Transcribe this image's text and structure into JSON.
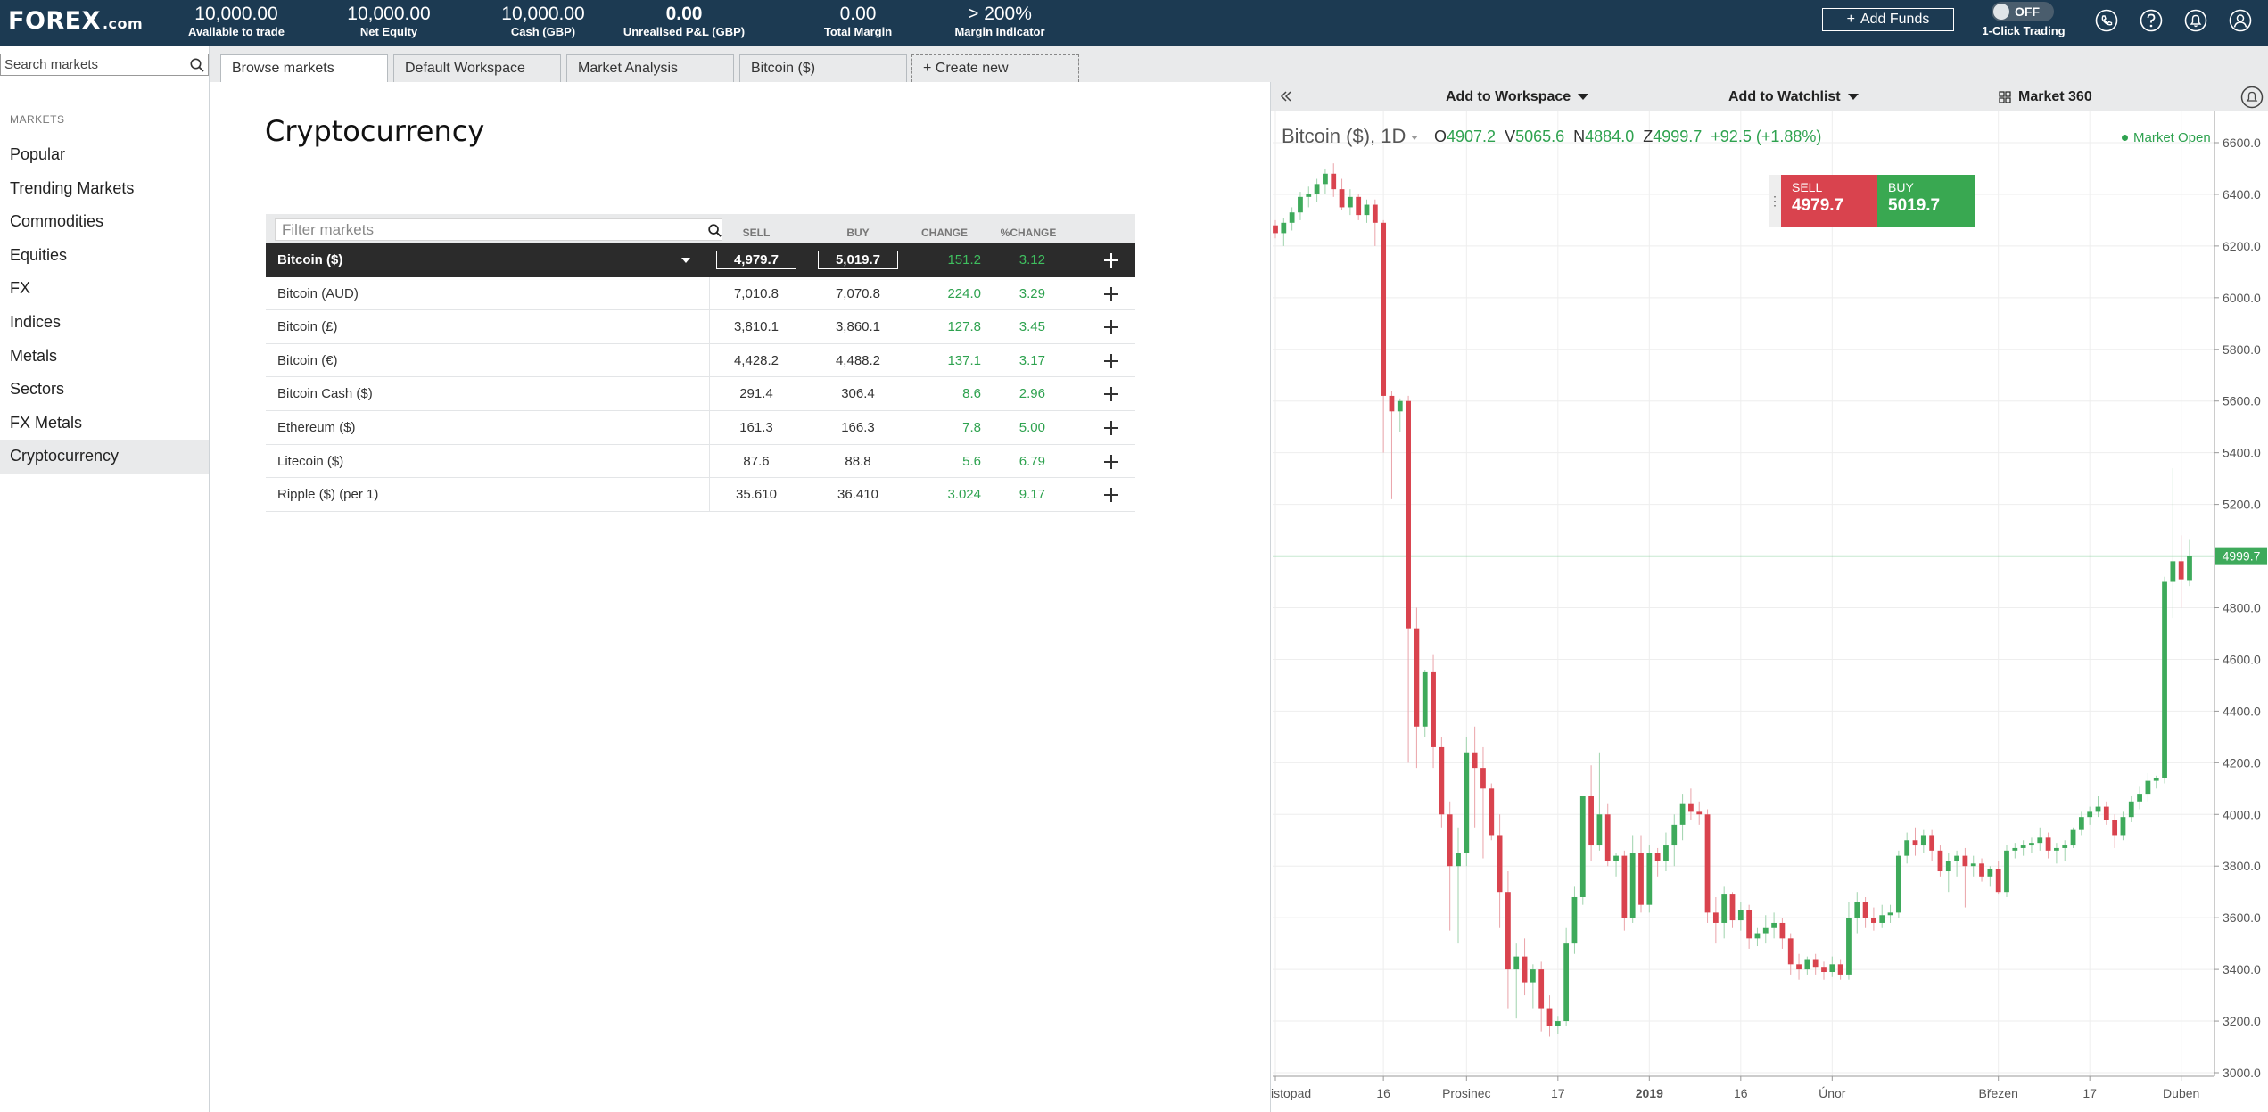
{
  "topbar": {
    "logo_main": "FOREX",
    "logo_suffix": ".com",
    "stats": [
      {
        "value": "10,000.00",
        "label": "Available to trade"
      },
      {
        "value": "10,000.00",
        "label": "Net Equity"
      },
      {
        "value": "10,000.00",
        "label": "Cash (GBP)"
      },
      {
        "value": "0.00",
        "label": "Unrealised P&L (GBP)"
      },
      {
        "value": "0.00",
        "label": "Total Margin"
      },
      {
        "value": "> 200%",
        "label": "Margin Indicator"
      }
    ],
    "add_funds": "Add Funds",
    "toggle_state": "OFF",
    "one_click_label": "1-Click Trading",
    "icons": [
      "phone-icon",
      "help-icon",
      "notifications-icon",
      "user-icon"
    ]
  },
  "sidebar": {
    "search_placeholder": "Search markets",
    "heading": "MARKETS",
    "items": [
      {
        "label": "Popular"
      },
      {
        "label": "Trending Markets"
      },
      {
        "label": "Commodities"
      },
      {
        "label": "Equities"
      },
      {
        "label": "FX"
      },
      {
        "label": "Indices"
      },
      {
        "label": "Metals"
      },
      {
        "label": "Sectors"
      },
      {
        "label": "FX Metals"
      },
      {
        "label": "Cryptocurrency",
        "active": true
      }
    ]
  },
  "tabs": [
    {
      "label": "Browse markets",
      "active": true
    },
    {
      "label": "Default Workspace"
    },
    {
      "label": "Market Analysis"
    },
    {
      "label": "Bitcoin ($)"
    },
    {
      "label": "+ Create new"
    }
  ],
  "browse": {
    "title": "Cryptocurrency",
    "filter_placeholder": "Filter markets",
    "headers": {
      "sell": "SELL",
      "buy": "BUY",
      "change": "CHANGE",
      "pct": "%CHANGE"
    },
    "rows": [
      {
        "name": "Bitcoin ($)",
        "sell": "4,979.7",
        "buy": "5,019.7",
        "change": "151.2",
        "pct": "3.12",
        "selected": true
      },
      {
        "name": "Bitcoin (AUD)",
        "sell": "7,010.8",
        "buy": "7,070.8",
        "change": "224.0",
        "pct": "3.29"
      },
      {
        "name": "Bitcoin (£)",
        "sell": "3,810.1",
        "buy": "3,860.1",
        "change": "127.8",
        "pct": "3.45"
      },
      {
        "name": "Bitcoin (€)",
        "sell": "4,428.2",
        "buy": "4,488.2",
        "change": "137.1",
        "pct": "3.17"
      },
      {
        "name": "Bitcoin Cash ($)",
        "sell": "291.4",
        "buy": "306.4",
        "change": "8.6",
        "pct": "2.96"
      },
      {
        "name": "Ethereum ($)",
        "sell": "161.3",
        "buy": "166.3",
        "change": "7.8",
        "pct": "5.00"
      },
      {
        "name": "Litecoin ($)",
        "sell": "87.6",
        "buy": "88.8",
        "change": "5.6",
        "pct": "6.79"
      },
      {
        "name": "Ripple ($) (per 1)",
        "sell": "35.610",
        "buy": "36.410",
        "change": "3.024",
        "pct": "9.17"
      }
    ]
  },
  "chart_panel": {
    "add_workspace": "Add to Workspace",
    "add_watchlist": "Add to Watchlist",
    "market360": "Market 360",
    "symbol": "Bitcoin ($), 1D",
    "ohlc": [
      {
        "k": "O",
        "v": "4907.2"
      },
      {
        "k": "V",
        "v": "5065.6"
      },
      {
        "k": "N",
        "v": "4884.0"
      },
      {
        "k": "Z",
        "v": "4999.7"
      }
    ],
    "change": "+92.5 (+1.88%)",
    "market_status": "Market Open",
    "sell_label": "SELL",
    "sell_price": "4979.7",
    "buy_label": "BUY",
    "buy_price": "5019.7",
    "colors": {
      "up": "#3eaa5b",
      "down": "#d9434e",
      "last_line": "#8fd2a2"
    }
  },
  "chart_data": {
    "type": "candlestick",
    "title": "Bitcoin ($), 1D",
    "ylim": [
      3000,
      6600
    ],
    "y_ticks": [
      3000,
      3200,
      3400,
      3600,
      3800,
      4000,
      4200,
      4400,
      4600,
      4800,
      5000,
      5200,
      5400,
      5600,
      5800,
      6000,
      6200,
      6400,
      6600
    ],
    "y_tick_labels": [
      "3000.0",
      "3200.0",
      "3400.0",
      "3600.0",
      "3800.0",
      "4000.0",
      "4200.0",
      "4400.0",
      "4600.0",
      "4800.0",
      "5000.0",
      "5200.0",
      "5400.0",
      "5600.0",
      "5800.0",
      "6000.0",
      "6200.0",
      "6400.0",
      "6600.0"
    ],
    "x_tick_labels": [
      {
        "label": "istopad",
        "index": 0
      },
      {
        "label": "16",
        "index": 13
      },
      {
        "label": "Prosinec",
        "index": 23
      },
      {
        "label": "17",
        "index": 34
      },
      {
        "label": "2019",
        "index": 45,
        "bold": true
      },
      {
        "label": "16",
        "index": 56
      },
      {
        "label": "Únor",
        "index": 67
      },
      {
        "label": "Březen",
        "index": 87
      },
      {
        "label": "17",
        "index": 98
      },
      {
        "label": "Duben",
        "index": 109
      }
    ],
    "last_price": 4999.7,
    "last_price_label": "4999.7",
    "candles": [
      {
        "o": 6280,
        "h": 6300,
        "l": 6230,
        "c": 6250
      },
      {
        "o": 6250,
        "h": 6310,
        "l": 6200,
        "c": 6290
      },
      {
        "o": 6290,
        "h": 6350,
        "l": 6260,
        "c": 6330
      },
      {
        "o": 6330,
        "h": 6410,
        "l": 6300,
        "c": 6390
      },
      {
        "o": 6390,
        "h": 6430,
        "l": 6350,
        "c": 6400
      },
      {
        "o": 6400,
        "h": 6460,
        "l": 6370,
        "c": 6440
      },
      {
        "o": 6440,
        "h": 6500,
        "l": 6400,
        "c": 6480
      },
      {
        "o": 6480,
        "h": 6520,
        "l": 6390,
        "c": 6420
      },
      {
        "o": 6420,
        "h": 6460,
        "l": 6340,
        "c": 6350
      },
      {
        "o": 6350,
        "h": 6420,
        "l": 6320,
        "c": 6390
      },
      {
        "o": 6390,
        "h": 6400,
        "l": 6300,
        "c": 6320
      },
      {
        "o": 6320,
        "h": 6380,
        "l": 6290,
        "c": 6360
      },
      {
        "o": 6360,
        "h": 6380,
        "l": 6200,
        "c": 6290
      },
      {
        "o": 6290,
        "h": 6300,
        "l": 5400,
        "c": 5620
      },
      {
        "o": 5620,
        "h": 5640,
        "l": 5220,
        "c": 5560
      },
      {
        "o": 5560,
        "h": 5610,
        "l": 5480,
        "c": 5600
      },
      {
        "o": 5600,
        "h": 5620,
        "l": 4200,
        "c": 4720
      },
      {
        "o": 4720,
        "h": 4800,
        "l": 4180,
        "c": 4340
      },
      {
        "o": 4340,
        "h": 4560,
        "l": 4300,
        "c": 4550
      },
      {
        "o": 4550,
        "h": 4620,
        "l": 4180,
        "c": 4260
      },
      {
        "o": 4260,
        "h": 4300,
        "l": 3950,
        "c": 4000
      },
      {
        "o": 4000,
        "h": 4050,
        "l": 3550,
        "c": 3800
      },
      {
        "o": 3800,
        "h": 3950,
        "l": 3500,
        "c": 3850
      },
      {
        "o": 3850,
        "h": 4300,
        "l": 3800,
        "c": 4240
      },
      {
        "o": 4240,
        "h": 4340,
        "l": 3950,
        "c": 4180
      },
      {
        "o": 4180,
        "h": 4260,
        "l": 3830,
        "c": 4100
      },
      {
        "o": 4100,
        "h": 4120,
        "l": 3900,
        "c": 3920
      },
      {
        "o": 3920,
        "h": 4000,
        "l": 3560,
        "c": 3700
      },
      {
        "o": 3700,
        "h": 3780,
        "l": 3250,
        "c": 3400
      },
      {
        "o": 3400,
        "h": 3500,
        "l": 3210,
        "c": 3450
      },
      {
        "o": 3450,
        "h": 3520,
        "l": 3300,
        "c": 3350
      },
      {
        "o": 3350,
        "h": 3420,
        "l": 3250,
        "c": 3400
      },
      {
        "o": 3400,
        "h": 3430,
        "l": 3160,
        "c": 3250
      },
      {
        "o": 3250,
        "h": 3300,
        "l": 3140,
        "c": 3180
      },
      {
        "o": 3180,
        "h": 3220,
        "l": 3150,
        "c": 3200
      },
      {
        "o": 3200,
        "h": 3560,
        "l": 3180,
        "c": 3500
      },
      {
        "o": 3500,
        "h": 3720,
        "l": 3460,
        "c": 3680
      },
      {
        "o": 3680,
        "h": 4050,
        "l": 3650,
        "c": 4070
      },
      {
        "o": 4070,
        "h": 4190,
        "l": 3820,
        "c": 3880
      },
      {
        "o": 3880,
        "h": 4240,
        "l": 3860,
        "c": 4000
      },
      {
        "o": 4000,
        "h": 4040,
        "l": 3800,
        "c": 3820
      },
      {
        "o": 3820,
        "h": 3850,
        "l": 3760,
        "c": 3840
      },
      {
        "o": 3840,
        "h": 3860,
        "l": 3550,
        "c": 3600
      },
      {
        "o": 3600,
        "h": 3920,
        "l": 3580,
        "c": 3850
      },
      {
        "o": 3850,
        "h": 3920,
        "l": 3620,
        "c": 3650
      },
      {
        "o": 3650,
        "h": 3880,
        "l": 3620,
        "c": 3850
      },
      {
        "o": 3850,
        "h": 3870,
        "l": 3760,
        "c": 3820
      },
      {
        "o": 3820,
        "h": 3930,
        "l": 3780,
        "c": 3880
      },
      {
        "o": 3880,
        "h": 4000,
        "l": 3800,
        "c": 3960
      },
      {
        "o": 3960,
        "h": 4080,
        "l": 3900,
        "c": 4040
      },
      {
        "o": 4040,
        "h": 4100,
        "l": 3980,
        "c": 4010
      },
      {
        "o": 4010,
        "h": 4050,
        "l": 3960,
        "c": 4000
      },
      {
        "o": 4000,
        "h": 4020,
        "l": 3580,
        "c": 3620
      },
      {
        "o": 3620,
        "h": 3680,
        "l": 3500,
        "c": 3580
      },
      {
        "o": 3580,
        "h": 3720,
        "l": 3520,
        "c": 3690
      },
      {
        "o": 3690,
        "h": 3700,
        "l": 3560,
        "c": 3590
      },
      {
        "o": 3590,
        "h": 3660,
        "l": 3550,
        "c": 3630
      },
      {
        "o": 3630,
        "h": 3650,
        "l": 3480,
        "c": 3520
      },
      {
        "o": 3520,
        "h": 3560,
        "l": 3490,
        "c": 3540
      },
      {
        "o": 3540,
        "h": 3610,
        "l": 3500,
        "c": 3560
      },
      {
        "o": 3560,
        "h": 3620,
        "l": 3520,
        "c": 3580
      },
      {
        "o": 3580,
        "h": 3600,
        "l": 3480,
        "c": 3520
      },
      {
        "o": 3520,
        "h": 3540,
        "l": 3380,
        "c": 3420
      },
      {
        "o": 3420,
        "h": 3460,
        "l": 3360,
        "c": 3400
      },
      {
        "o": 3400,
        "h": 3450,
        "l": 3380,
        "c": 3440
      },
      {
        "o": 3440,
        "h": 3460,
        "l": 3380,
        "c": 3410
      },
      {
        "o": 3410,
        "h": 3430,
        "l": 3360,
        "c": 3390
      },
      {
        "o": 3390,
        "h": 3450,
        "l": 3370,
        "c": 3420
      },
      {
        "o": 3420,
        "h": 3440,
        "l": 3360,
        "c": 3380
      },
      {
        "o": 3380,
        "h": 3660,
        "l": 3360,
        "c": 3600
      },
      {
        "o": 3600,
        "h": 3700,
        "l": 3540,
        "c": 3660
      },
      {
        "o": 3660,
        "h": 3680,
        "l": 3560,
        "c": 3600
      },
      {
        "o": 3600,
        "h": 3640,
        "l": 3550,
        "c": 3580
      },
      {
        "o": 3580,
        "h": 3650,
        "l": 3560,
        "c": 3610
      },
      {
        "o": 3610,
        "h": 3650,
        "l": 3580,
        "c": 3620
      },
      {
        "o": 3620,
        "h": 3860,
        "l": 3600,
        "c": 3840
      },
      {
        "o": 3840,
        "h": 3930,
        "l": 3810,
        "c": 3900
      },
      {
        "o": 3900,
        "h": 3950,
        "l": 3840,
        "c": 3880
      },
      {
        "o": 3880,
        "h": 3940,
        "l": 3850,
        "c": 3920
      },
      {
        "o": 3920,
        "h": 3940,
        "l": 3820,
        "c": 3860
      },
      {
        "o": 3860,
        "h": 3880,
        "l": 3760,
        "c": 3780
      },
      {
        "o": 3780,
        "h": 3850,
        "l": 3700,
        "c": 3820
      },
      {
        "o": 3820,
        "h": 3860,
        "l": 3760,
        "c": 3840
      },
      {
        "o": 3840,
        "h": 3870,
        "l": 3640,
        "c": 3800
      },
      {
        "o": 3800,
        "h": 3840,
        "l": 3760,
        "c": 3810
      },
      {
        "o": 3810,
        "h": 3830,
        "l": 3740,
        "c": 3760
      },
      {
        "o": 3760,
        "h": 3800,
        "l": 3720,
        "c": 3790
      },
      {
        "o": 3790,
        "h": 3820,
        "l": 3690,
        "c": 3700
      },
      {
        "o": 3700,
        "h": 3880,
        "l": 3680,
        "c": 3860
      },
      {
        "o": 3860,
        "h": 3890,
        "l": 3830,
        "c": 3870
      },
      {
        "o": 3870,
        "h": 3900,
        "l": 3840,
        "c": 3880
      },
      {
        "o": 3880,
        "h": 3910,
        "l": 3850,
        "c": 3890
      },
      {
        "o": 3890,
        "h": 3950,
        "l": 3860,
        "c": 3910
      },
      {
        "o": 3910,
        "h": 3930,
        "l": 3830,
        "c": 3860
      },
      {
        "o": 3860,
        "h": 3890,
        "l": 3810,
        "c": 3870
      },
      {
        "o": 3870,
        "h": 3900,
        "l": 3820,
        "c": 3880
      },
      {
        "o": 3880,
        "h": 3950,
        "l": 3870,
        "c": 3940
      },
      {
        "o": 3940,
        "h": 4010,
        "l": 3920,
        "c": 3990
      },
      {
        "o": 3990,
        "h": 4030,
        "l": 3960,
        "c": 4010
      },
      {
        "o": 4010,
        "h": 4070,
        "l": 3990,
        "c": 4030
      },
      {
        "o": 4030,
        "h": 4050,
        "l": 3960,
        "c": 3980
      },
      {
        "o": 3980,
        "h": 4000,
        "l": 3870,
        "c": 3920
      },
      {
        "o": 3920,
        "h": 4010,
        "l": 3900,
        "c": 3990
      },
      {
        "o": 3990,
        "h": 4070,
        "l": 3970,
        "c": 4050
      },
      {
        "o": 4050,
        "h": 4110,
        "l": 4020,
        "c": 4080
      },
      {
        "o": 4080,
        "h": 4160,
        "l": 4050,
        "c": 4130
      },
      {
        "o": 4130,
        "h": 4150,
        "l": 4100,
        "c": 4140
      },
      {
        "o": 4140,
        "h": 4920,
        "l": 4120,
        "c": 4900
      },
      {
        "o": 4900,
        "h": 5340,
        "l": 4760,
        "c": 4980
      },
      {
        "o": 4980,
        "h": 5080,
        "l": 4800,
        "c": 4910
      },
      {
        "o": 4907.2,
        "h": 5065.6,
        "l": 4884,
        "c": 4999.7
      }
    ]
  }
}
